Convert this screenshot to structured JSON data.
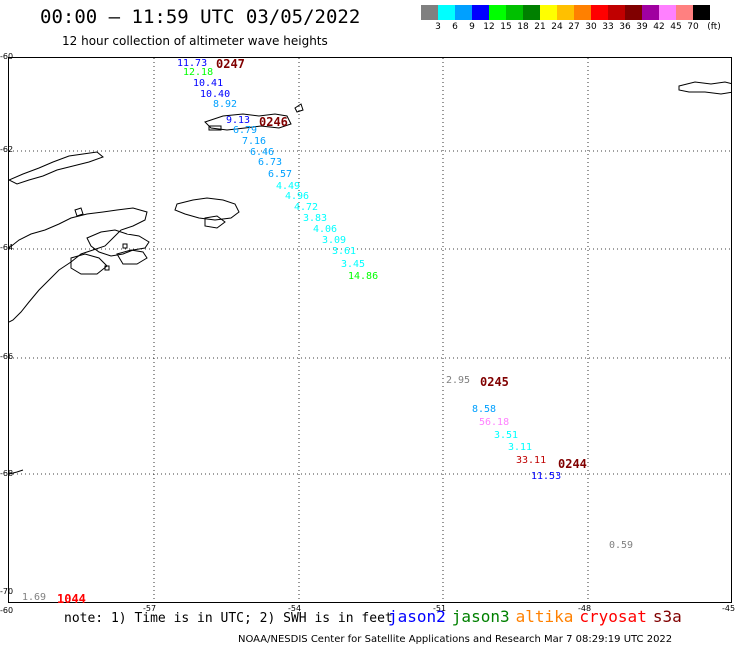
{
  "header": {
    "title": "00:00 — 11:59 UTC 03/05/2022",
    "subtitle": "12 hour collection of altimeter wave heights"
  },
  "colorbar": {
    "colors": [
      "#808080",
      "#00ffff",
      "#00a0ff",
      "#0000ff",
      "#00ff00",
      "#00c000",
      "#008000",
      "#ffff00",
      "#ffc000",
      "#ff8000",
      "#ff0000",
      "#c00000",
      "#800000",
      "#a000a0",
      "#ff80ff",
      "#ff8080",
      "#000000"
    ],
    "labels": [
      "3",
      "6",
      "9",
      "12",
      "15",
      "18",
      "21",
      "24",
      "27",
      "30",
      "33",
      "36",
      "39",
      "42",
      "45",
      "70",
      "(ft)"
    ]
  },
  "axes": {
    "lat_labels": [
      "-60",
      "-62",
      "-64",
      "-66",
      "-68",
      "-70"
    ],
    "lon_labels": [
      "-60",
      "-57",
      "-54",
      "-51",
      "-48",
      "-45"
    ]
  },
  "tracks": [
    {
      "name": "0247",
      "color": "#800000",
      "points": [
        {
          "value": "11.73",
          "color": "#0000ff"
        },
        {
          "value": "12.18",
          "color": "#00ff00"
        },
        {
          "value": "10.41",
          "color": "#0000ff"
        },
        {
          "value": "10.40",
          "color": "#0000ff"
        },
        {
          "value": "8.92",
          "color": "#00a0ff"
        }
      ]
    },
    {
      "name": "0246",
      "color": "#800000",
      "points": [
        {
          "value": "9.13",
          "color": "#0000ff"
        },
        {
          "value": "6.79",
          "color": "#00a0ff"
        },
        {
          "value": "7.16",
          "color": "#00a0ff"
        },
        {
          "value": "6.46",
          "color": "#00a0ff"
        },
        {
          "value": "6.73",
          "color": "#00a0ff"
        },
        {
          "value": "6.57",
          "color": "#00a0ff"
        },
        {
          "value": "4.49",
          "color": "#00ffff"
        },
        {
          "value": "4.96",
          "color": "#00ffff"
        },
        {
          "value": "4.72",
          "color": "#00ffff"
        },
        {
          "value": "3.83",
          "color": "#00ffff"
        },
        {
          "value": "4.06",
          "color": "#00ffff"
        },
        {
          "value": "3.09",
          "color": "#00ffff"
        },
        {
          "value": "3.61",
          "color": "#00ffff"
        },
        {
          "value": "3.45",
          "color": "#00ffff"
        },
        {
          "value": "14.86",
          "color": "#00ff00"
        }
      ]
    },
    {
      "name": "0245",
      "color": "#800000",
      "points": [
        {
          "value": "2.95",
          "color": "#808080"
        },
        {
          "value": "8.58",
          "color": "#00a0ff"
        },
        {
          "value": "56.18",
          "color": "#ff80ff"
        },
        {
          "value": "3.51",
          "color": "#00ffff"
        },
        {
          "value": "3.11",
          "color": "#00ffff"
        }
      ]
    },
    {
      "name": "0244",
      "color": "#800000",
      "points": [
        {
          "value": "33.11",
          "color": "#c00000"
        },
        {
          "value": "11.53",
          "color": "#0000ff"
        }
      ]
    },
    {
      "name": "1044",
      "color": "#ff0000",
      "points": [
        {
          "value": "1.69",
          "color": "#808080"
        }
      ]
    }
  ],
  "isolated": [
    {
      "value": "0.59",
      "color": "#808080"
    }
  ],
  "footer": {
    "note": "note: 1) Time is in UTC; 2) SWH is in feet",
    "satellites": [
      {
        "name": "jason2",
        "color": "#0000ff"
      },
      {
        "name": "jason3",
        "color": "#008000"
      },
      {
        "name": "altika",
        "color": "#ff8000"
      },
      {
        "name": "cryosat",
        "color": "#ff0000"
      },
      {
        "name": "s3a",
        "color": "#800000"
      }
    ],
    "credit": "NOAA/NESDIS Center for Satellite Applications and Research   Mar  7 08:29:19 UTC 2022"
  }
}
